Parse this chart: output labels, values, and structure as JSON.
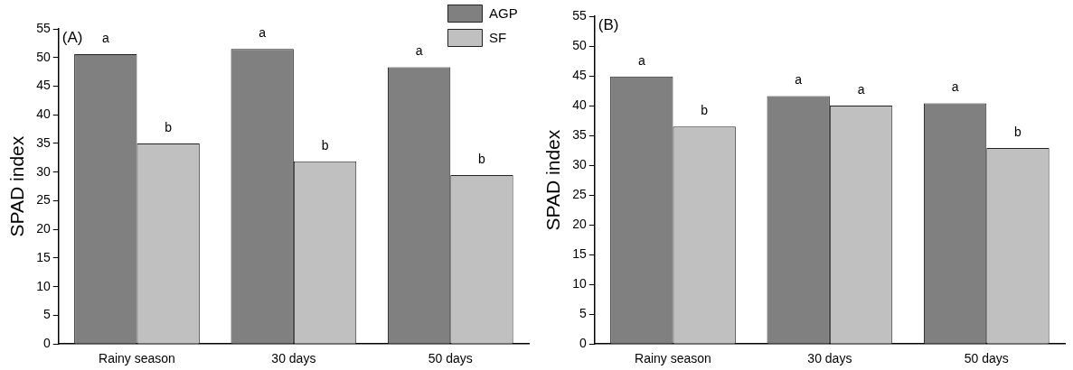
{
  "chart_data": [
    {
      "type": "bar",
      "title": "(A)",
      "ylabel": "SPAD index",
      "categories": [
        "Rainy season",
        "30 days",
        "50 days"
      ],
      "series": [
        {
          "name": "AGP",
          "color": "#808080",
          "values": [
            50.6,
            51.5,
            48.3
          ]
        },
        {
          "name": "SF",
          "color": "#c0c0c0",
          "values": [
            35.0,
            31.9,
            29.5
          ]
        }
      ],
      "ylim": [
        0,
        55
      ],
      "yticks": [
        0,
        5,
        10,
        15,
        20,
        25,
        30,
        35,
        40,
        45,
        50,
        55
      ],
      "grid": false,
      "legend": "top right",
      "annotations": [
        {
          "text": "a",
          "x": "Rainy season",
          "y": 50.6
        },
        {
          "text": "b",
          "x": "Rainy season",
          "y": 35.0
        },
        {
          "text": "a",
          "x": "30 days",
          "y": 51.5
        },
        {
          "text": "b",
          "x": "30 days",
          "y": 31.9
        },
        {
          "text": "a",
          "x": "50 days",
          "y": 48.3
        },
        {
          "text": "b",
          "x": "50 days",
          "y": 29.5
        }
      ]
    },
    {
      "type": "bar",
      "title": "(B)",
      "ylabel": "SPAD index",
      "categories": [
        "Rainy season",
        "30 days",
        "50 days"
      ],
      "series": [
        {
          "color": "#808080",
          "values": [
            44.9,
            41.6,
            40.4
          ]
        },
        {
          "color": "#c0c0c0",
          "values": [
            36.5,
            40.0,
            32.9
          ]
        }
      ],
      "ylim": [
        0,
        55
      ],
      "yticks": [
        0,
        5,
        10,
        15,
        20,
        25,
        30,
        35,
        40,
        45,
        50,
        55
      ],
      "grid": false,
      "annotations": [
        {
          "text": "a",
          "x": "Rainy season",
          "y": 44.9
        },
        {
          "text": "b",
          "x": "Rainy season",
          "y": 36.5
        },
        {
          "text": "a",
          "x": "30 days",
          "y": 41.6
        },
        {
          "text": "a",
          "x": "30 days",
          "y": 40.0
        },
        {
          "text": "a",
          "x": "50 days",
          "y": 40.4
        },
        {
          "text": "b",
          "x": "50 days",
          "y": 32.9
        }
      ]
    }
  ]
}
